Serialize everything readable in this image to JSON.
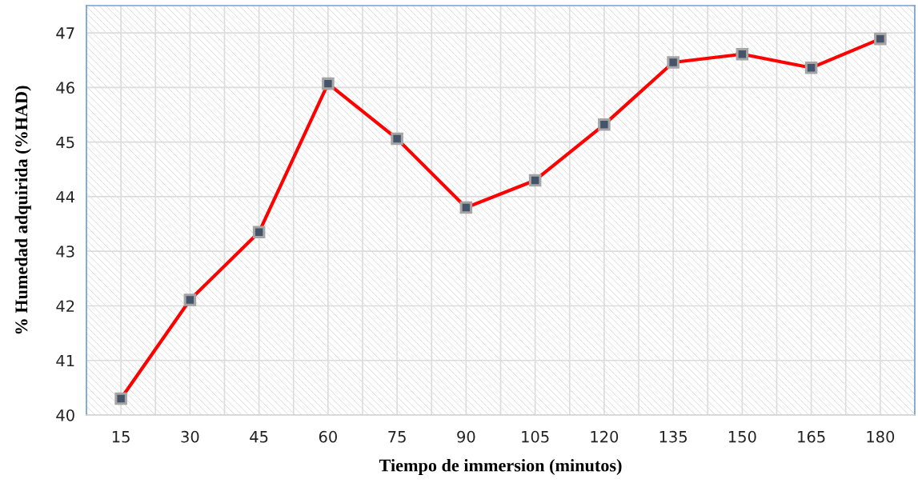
{
  "chart_data": {
    "type": "line",
    "xlabel": "Tiempo de immersion (minutos)",
    "ylabel": "% Humedad adquirida (%HAD)",
    "categories": [
      "15",
      "30",
      "45",
      "60",
      "75",
      "90",
      "105",
      "120",
      "135",
      "150",
      "165",
      "180"
    ],
    "series": [
      {
        "color": "#ff0000",
        "values": [
          40.3,
          42.11,
          43.35,
          46.07,
          45.06,
          43.8,
          44.3,
          45.32,
          46.46,
          46.61,
          46.36,
          46.89
        ]
      }
    ],
    "ylim": [
      40,
      47.5
    ],
    "yticks": [
      40,
      41,
      42,
      43,
      44,
      45,
      46,
      47
    ],
    "grid": true,
    "marker": "square",
    "line_style": "solid"
  }
}
